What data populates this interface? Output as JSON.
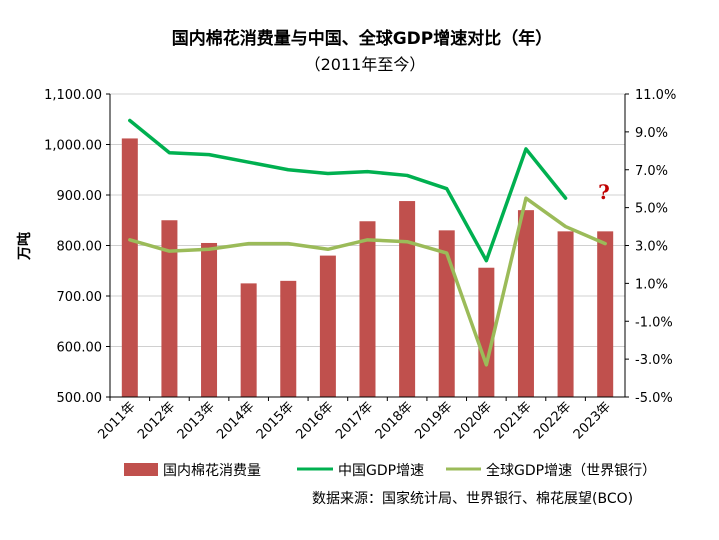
{
  "chart_data": {
    "type": "bar",
    "title": "国内棉花消费量与中国、全球GDP增速对比（年）",
    "subtitle": "（2011年至今）",
    "ylabel": "万吨",
    "categories": [
      "2011年",
      "2012年",
      "2013年",
      "2014年",
      "2015年",
      "2016年",
      "2017年",
      "2018年",
      "2019年",
      "2020年",
      "2021年",
      "2022年",
      "2023年"
    ],
    "left_axis": {
      "ylim": [
        500,
        1100
      ],
      "ticks": [
        500,
        600,
        700,
        800,
        900,
        1000,
        1100
      ],
      "tick_labels": [
        "500.00",
        "600.00",
        "700.00",
        "800.00",
        "900.00",
        "1,000.00",
        "1,100.00"
      ]
    },
    "right_axis": {
      "ylim": [
        -5,
        11
      ],
      "ticks": [
        -5,
        -3,
        -1,
        1,
        3,
        5,
        7,
        9,
        11
      ],
      "tick_labels": [
        "-5.0%",
        "-3.0%",
        "-1.0%",
        "1.0%",
        "3.0%",
        "5.0%",
        "7.0%",
        "9.0%",
        "11.0%"
      ]
    },
    "series": [
      {
        "name": "国内棉花消费量",
        "type": "bar",
        "axis": "left",
        "color": "#c0504d",
        "values": [
          1012,
          850,
          805,
          725,
          730,
          780,
          848,
          888,
          830,
          756,
          870,
          828,
          828
        ]
      },
      {
        "name": "中国GDP增速",
        "type": "line",
        "axis": "right",
        "color": "#00b050",
        "values": [
          9.6,
          7.9,
          7.8,
          7.4,
          7.0,
          6.8,
          6.9,
          6.7,
          6.0,
          2.2,
          8.1,
          5.5,
          null
        ]
      },
      {
        "name": "全球GDP增速（世界银行）",
        "type": "line",
        "axis": "right",
        "color": "#9bbb59",
        "values": [
          3.3,
          2.7,
          2.8,
          3.1,
          3.1,
          2.8,
          3.3,
          3.2,
          2.6,
          -3.3,
          5.5,
          4.0,
          3.1
        ]
      }
    ],
    "annotation": "?",
    "source": "数据来源：国家统计局、世界银行、棉花展望(BCO)",
    "grid": true,
    "legend_position": "bottom"
  }
}
